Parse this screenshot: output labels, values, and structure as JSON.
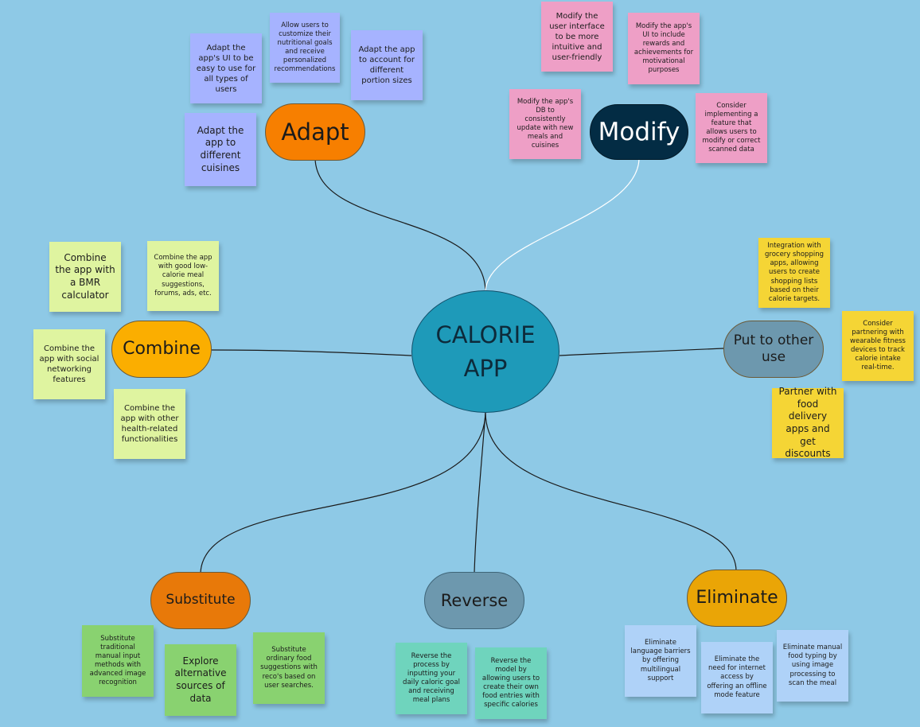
{
  "center": {
    "label": "CALORIE\nAPP"
  },
  "branches": [
    {
      "id": "adapt",
      "label": "Adapt",
      "color": "#f77f00",
      "notes": [
        "Adapt the app's UI to be easy to use for all types of users",
        "Allow users to customize their nutritional goals and receive personalized recommendations",
        "Adapt the app to account for different portion sizes",
        "Adapt the app to different cuisines"
      ]
    },
    {
      "id": "modify",
      "label": "Modify",
      "color": "#032c44",
      "notes": [
        "Modify the user interface to be more intuitive and user-friendly",
        "Modify the app's UI to include rewards and achievements for motivational purposes",
        "Modify the app's DB to consistently update with new meals and cuisines",
        "Consider implementing a feature that allows users to modify or correct scanned data"
      ]
    },
    {
      "id": "combine",
      "label": "Combine",
      "color": "#fbae00",
      "notes": [
        "Combine the app with a BMR calculator",
        "Combine the app with good low-calorie meal suggestions, forums, ads, etc.",
        "Combine the app with social networking features",
        "Combine the app with other health-related functionalities"
      ]
    },
    {
      "id": "put-to-other-use",
      "label": "Put to other use",
      "color": "#6d98ae",
      "notes": [
        "Integration with grocery shopping apps, allowing users to create shopping lists based on their calorie targets.",
        "Consider partnering with wearable fitness devices to track calorie intake real-time.",
        "Partner with food delivery apps and get discounts"
      ]
    },
    {
      "id": "substitute",
      "label": "Substitute",
      "color": "#e87909",
      "notes": [
        "Substitute traditional manual input methods with advanced image recognition",
        "Explore alternative sources of data",
        "Substitute ordinary food suggestions with reco's based on user searches."
      ]
    },
    {
      "id": "reverse",
      "label": "Reverse",
      "color": "#6d98ae",
      "notes": [
        "Reverse the process by inputting your daily caloric goal and receiving meal plans",
        "Reverse the model by allowing users to create their own food entries with specific calories"
      ]
    },
    {
      "id": "eliminate",
      "label": "Eliminate",
      "color": "#eaa506",
      "notes": [
        "Eliminate language barriers by offering multilingual support",
        "Eliminate the need for internet access by offering an offline mode feature",
        "Eliminate manual food typing by using image processing to scan the meal"
      ]
    }
  ],
  "colors": {
    "background": "#8ec9e6",
    "center": "#1e9ab9",
    "note_violet": "#a6b3ff",
    "note_pink": "#ee9fc6",
    "note_lime": "#dff4a0",
    "note_yellow": "#f5d535",
    "note_green": "#89d270",
    "note_teal": "#6fd4bd",
    "note_blue": "#afd2f8",
    "connector": "#1a1a1a",
    "connector_modify": "#ffffff"
  }
}
